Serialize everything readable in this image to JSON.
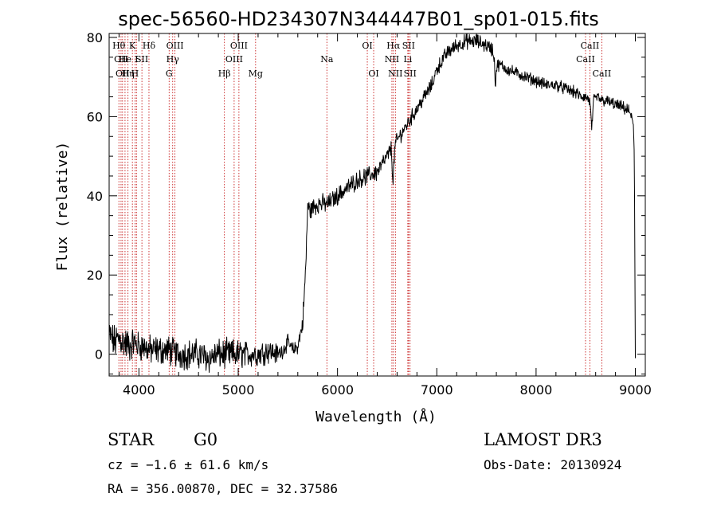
{
  "title": "spec-56560-HD234307N344447B01_sp01-015.fits",
  "info": {
    "object_class": "STAR",
    "subclass": "G0",
    "survey": "LAMOST DR3",
    "redshift": "cz = −1.6 ± 61.6 km/s",
    "obs_date": "Obs-Date: 20130924",
    "coords": "RA = 356.00870, DEC =  32.37586"
  },
  "chart_data": {
    "type": "line",
    "title": "spec-56560-HD234307N344447B01_sp01-015.fits",
    "xlabel": "Wavelength (Å)",
    "ylabel": "Flux (relative)",
    "xlim": [
      3700,
      9100
    ],
    "ylim": [
      -5.5,
      81
    ],
    "xticks": [
      4000,
      5000,
      6000,
      7000,
      8000,
      9000
    ],
    "yticks": [
      0,
      20,
      40,
      60,
      80
    ],
    "grid": false,
    "line_color": "#000000",
    "marker_color": "#c00000",
    "spectral_lines": [
      {
        "wave": 3798,
        "label": "Hθ",
        "row": 1
      },
      {
        "wave": 3820,
        "label": "OII",
        "row": 2
      },
      {
        "wave": 3835,
        "label": "OII",
        "row": 3
      },
      {
        "wave": 3860,
        "label": "He",
        "row": 2
      },
      {
        "wave": 3890,
        "label": "Hη",
        "row": 3
      },
      {
        "wave": 3934,
        "label": "K",
        "row": 1
      },
      {
        "wave": 3960,
        "label": "H",
        "row": 3
      },
      {
        "wave": 3975,
        "label": "I",
        "row": 2
      },
      {
        "wave": 4030,
        "label": "SII",
        "row": 2
      },
      {
        "wave": 4101,
        "label": "Hδ",
        "row": 1
      },
      {
        "wave": 4304,
        "label": "G",
        "row": 3
      },
      {
        "wave": 4340,
        "label": "Hγ",
        "row": 2
      },
      {
        "wave": 4363,
        "label": "OIII",
        "row": 1
      },
      {
        "wave": 4861,
        "label": "Hβ",
        "row": 3
      },
      {
        "wave": 4959,
        "label": "OIII",
        "row": 2
      },
      {
        "wave": 5007,
        "label": "OIII",
        "row": 1
      },
      {
        "wave": 5175,
        "label": "Mg",
        "row": 3
      },
      {
        "wave": 5893,
        "label": "Na",
        "row": 2
      },
      {
        "wave": 6300,
        "label": "OI",
        "row": 1
      },
      {
        "wave": 6364,
        "label": "OI",
        "row": 3
      },
      {
        "wave": 6548,
        "label": "NII",
        "row": 2
      },
      {
        "wave": 6563,
        "label": "Hα",
        "row": 1
      },
      {
        "wave": 6583,
        "label": "NII",
        "row": 3
      },
      {
        "wave": 6708,
        "label": "Li",
        "row": 2
      },
      {
        "wave": 6716,
        "label": "SII",
        "row": 1
      },
      {
        "wave": 6731,
        "label": "SII",
        "row": 3
      },
      {
        "wave": 8498,
        "label": "CaII",
        "row": 2
      },
      {
        "wave": 8542,
        "label": "CaII",
        "row": 1
      },
      {
        "wave": 8662,
        "label": "CaII",
        "row": 3
      }
    ],
    "series": [
      {
        "x": [
          3700,
          3750,
          3800,
          3850,
          3900,
          3950,
          4000,
          4050,
          4100,
          4200,
          4300,
          4400,
          4500,
          4600,
          4700,
          4800,
          4900,
          5000,
          5100,
          5200,
          5300,
          5400,
          5450,
          5500,
          5550,
          5600,
          5650,
          5680,
          5700,
          5720,
          5750,
          5800,
          5900,
          6000,
          6100,
          6200,
          6300,
          6400,
          6450,
          6500,
          6540,
          6560,
          6580,
          6600,
          6650,
          6700,
          6750,
          6800,
          6850,
          6900,
          6950,
          7000,
          7050,
          7100,
          7150,
          7200,
          7300,
          7400,
          7500,
          7560,
          7580,
          7590,
          7600,
          7610,
          7650,
          7700,
          7800,
          7900,
          8000,
          8100,
          8200,
          8300,
          8400,
          8450,
          8500,
          8540,
          8560,
          8580,
          8620,
          8660,
          8700,
          8800,
          8900,
          8950,
          8980,
          8990,
          9000
        ],
        "y": [
          5,
          3,
          4,
          3,
          2,
          3,
          2,
          2,
          1,
          1,
          1,
          0,
          0,
          0,
          -1,
          0,
          0,
          0,
          0,
          0,
          1,
          0,
          1,
          3,
          1,
          2,
          8,
          22,
          38,
          36,
          37,
          38,
          38,
          40,
          42,
          44,
          45,
          46,
          48,
          50,
          52,
          44,
          53,
          54,
          56,
          58,
          60,
          62,
          64,
          66,
          68,
          72,
          74,
          76,
          77,
          78,
          79,
          79,
          78,
          77,
          74,
          68,
          72,
          73,
          73,
          72,
          71,
          70,
          69,
          68,
          68,
          67,
          66,
          65,
          65,
          64,
          57,
          64,
          65,
          64,
          64,
          63,
          62,
          61,
          58,
          50,
          -1
        ],
        "noise": [
          3.2,
          3.5,
          3.5,
          3.5,
          3.5,
          3,
          3,
          3,
          3,
          3,
          3,
          3,
          3,
          3,
          3,
          3,
          3,
          3,
          2.5,
          2.5,
          2.5,
          2,
          1.5,
          1.5,
          1.5,
          1.5,
          2,
          2,
          2,
          2,
          2,
          2,
          1.8,
          1.8,
          1.8,
          1.8,
          1.8,
          1.8,
          1.8,
          1.5,
          1.5,
          1.5,
          1.5,
          1.5,
          1.5,
          1.5,
          1.5,
          1.5,
          1.5,
          1.5,
          1.5,
          1.5,
          1.5,
          1.5,
          1.5,
          1.5,
          1.5,
          1.5,
          1.5,
          1.5,
          1.5,
          1.5,
          1.5,
          1.2,
          1.2,
          1.2,
          1.2,
          1.2,
          1.2,
          1.2,
          1.2,
          1.2,
          1.2,
          1.2,
          1.2,
          1.2,
          1.2,
          1.2,
          1.2,
          1.2,
          1.2,
          1.2,
          1.2,
          1.2,
          0,
          0,
          0
        ]
      }
    ]
  }
}
